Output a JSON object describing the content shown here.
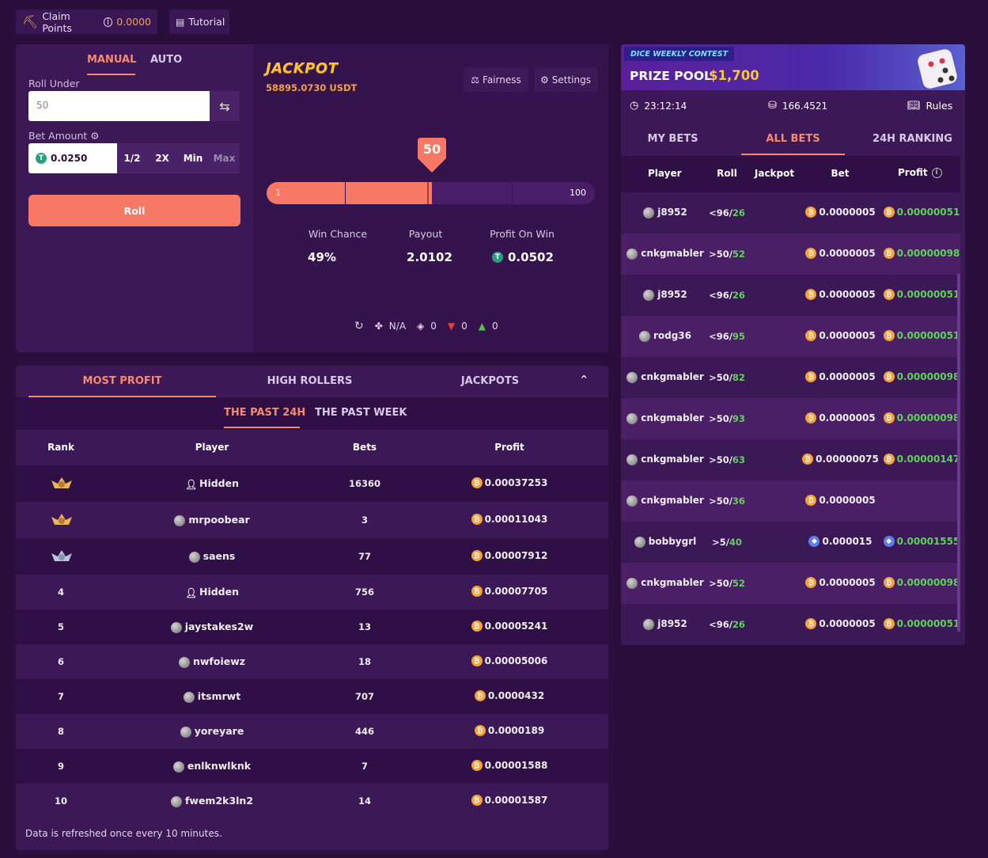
{
  "topbar": {
    "claim_label": "Claim Points",
    "claim_value": "0.0000",
    "tutorial_label": "Tutorial"
  },
  "bet_panel": {
    "tab_manual": "MANUAL",
    "tab_auto": "AUTO",
    "roll_under_label": "Roll Under",
    "roll_under_value": "50",
    "bet_amount_label": "Bet Amount",
    "bet_amount_value": "0.0250",
    "half": "1/2",
    "double": "2X",
    "min": "Min",
    "max": "Max",
    "roll_button": "Roll"
  },
  "game": {
    "jackpot_title": "JACKPOT",
    "jackpot_amount": "58895.0730 USDT",
    "fairness": "Fairness",
    "settings": "Settings",
    "marker_value": "50",
    "slider_min": "1",
    "slider_max": "100",
    "slider_value": 50,
    "win_chance_label": "Win Chance",
    "win_chance": "49%",
    "payout_label": "Payout",
    "payout": "2.0102",
    "profit_label": "Profit On Win",
    "profit": "0.0502",
    "stats": {
      "clover": "N/A",
      "cube": "0",
      "down": "0",
      "up": "0"
    }
  },
  "leaderboard": {
    "tabs": [
      "MOST PROFIT",
      "HIGH ROLLERS",
      "JACKPOTS"
    ],
    "periods": [
      "THE PAST 24H",
      "THE PAST WEEK"
    ],
    "headers": [
      "Rank",
      "Player",
      "Bets",
      "Profit"
    ],
    "rows": [
      {
        "rank": "",
        "player": "Hidden",
        "bets": "16360",
        "profit": "0.00037253"
      },
      {
        "rank": "",
        "player": "mrpoobear",
        "bets": "3",
        "profit": "0.00011043"
      },
      {
        "rank": "",
        "player": "saens",
        "bets": "77",
        "profit": "0.00007912"
      },
      {
        "rank": "4",
        "player": "Hidden",
        "bets": "756",
        "profit": "0.00007705"
      },
      {
        "rank": "5",
        "player": "jaystakes2w",
        "bets": "13",
        "profit": "0.00005241"
      },
      {
        "rank": "6",
        "player": "nwfoiewz",
        "bets": "18",
        "profit": "0.00005006"
      },
      {
        "rank": "7",
        "player": "itsmrwt",
        "bets": "707",
        "profit": "0.0000432"
      },
      {
        "rank": "8",
        "player": "yoreyare",
        "bets": "446",
        "profit": "0.0000189"
      },
      {
        "rank": "9",
        "player": "enlknwlknk",
        "bets": "7",
        "profit": "0.00001588"
      },
      {
        "rank": "10",
        "player": "fwem2k3ln2",
        "bets": "14",
        "profit": "0.00001587"
      }
    ],
    "footer": "Data is refreshed once every 10 minutes."
  },
  "contest": {
    "tag": "DICE WEEKLY CONTEST",
    "prize_label": "PRIZE POOL",
    "prize_value": "$1,700",
    "timer": "23:12:14",
    "pool_value": "166.4521",
    "rules": "Rules",
    "tabs": [
      "MY BETS",
      "ALL BETS",
      "24H RANKING"
    ],
    "headers": [
      "Player",
      "Roll",
      "Jackpot",
      "Bet",
      "Profit"
    ],
    "bets": [
      {
        "player": "j8952",
        "dir": "<96/",
        "roll": "26",
        "bet": "0.0000005",
        "profit": "0.00000051",
        "coin": "btc"
      },
      {
        "player": "cnkgmabler",
        "dir": ">50/",
        "roll": "52",
        "bet": "0.0000005",
        "profit": "0.00000098",
        "coin": "btc"
      },
      {
        "player": "j8952",
        "dir": "<96/",
        "roll": "26",
        "bet": "0.0000005",
        "profit": "0.00000051",
        "coin": "btc"
      },
      {
        "player": "rodg36",
        "dir": "<96/",
        "roll": "95",
        "bet": "0.0000005",
        "profit": "0.00000051",
        "coin": "btc"
      },
      {
        "player": "cnkgmabler",
        "dir": ">50/",
        "roll": "82",
        "bet": "0.0000005",
        "profit": "0.00000098",
        "coin": "btc"
      },
      {
        "player": "cnkgmabler",
        "dir": ">50/",
        "roll": "93",
        "bet": "0.0000005",
        "profit": "0.00000098",
        "coin": "btc"
      },
      {
        "player": "cnkgmabler",
        "dir": ">50/",
        "roll": "63",
        "bet": "0.00000075",
        "profit": "0.00000147",
        "coin": "btc"
      },
      {
        "player": "cnkgmabler",
        "dir": ">50/",
        "roll": "36",
        "bet": "0.0000005",
        "profit": "",
        "coin": "btc"
      },
      {
        "player": "bobbygrl",
        "dir": ">5/",
        "roll": "40",
        "bet": "0.000015",
        "profit": "0.00001555",
        "coin": "eth"
      },
      {
        "player": "cnkgmabler",
        "dir": ">50/",
        "roll": "52",
        "bet": "0.0000005",
        "profit": "0.00000098",
        "coin": "btc"
      },
      {
        "player": "j8952",
        "dir": "<96/",
        "roll": "26",
        "bet": "0.0000005",
        "profit": "0.00000051",
        "coin": "btc"
      }
    ]
  }
}
